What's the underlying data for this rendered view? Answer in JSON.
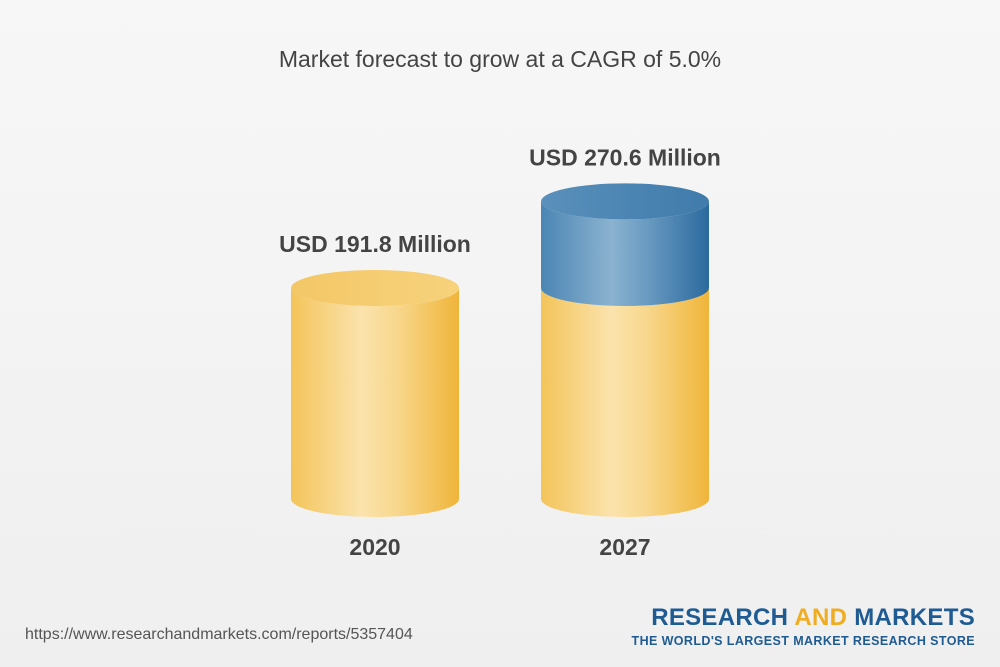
{
  "chart_data": {
    "type": "bar",
    "title": "Market forecast to grow at a CAGR of 5.0%",
    "categories": [
      "2020",
      "2027"
    ],
    "values": [
      191.8,
      270.6
    ],
    "value_labels": [
      "USD 191.8 Million",
      "USD 270.6 Million"
    ],
    "unit": "USD Million",
    "xlabel": "",
    "ylabel": "",
    "grid": false,
    "colors": {
      "base": "#f5c451",
      "growth": "#4b86b4"
    }
  },
  "footer": {
    "url": "https://www.researchandmarkets.com/reports/5357404"
  },
  "brand": {
    "word1": "RESEARCH",
    "word2": "AND",
    "word3": "MARKETS",
    "tagline": "THE WORLD'S LARGEST MARKET RESEARCH STORE"
  }
}
